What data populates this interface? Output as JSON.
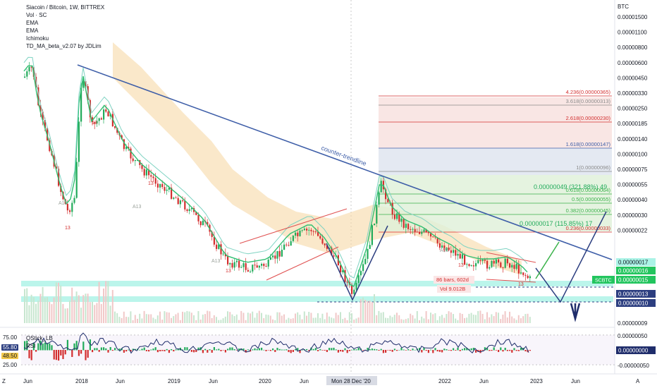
{
  "header": {
    "title": "Siacoin / Bitcoin, 1W, BITTREX",
    "indicators": [
      "Vol · SC",
      "EMA",
      "EMA",
      "Ichimoku",
      "TD_MA_beta_v2.07 by JDLim"
    ]
  },
  "sub_panel": {
    "indicators": [
      "QStick_LB",
      "RSI"
    ],
    "left_labels": [
      "75.00",
      "55.80",
      "48.50",
      "25.00"
    ],
    "right_labels": [
      "0.00000050",
      "0.00000000",
      "-0.00000050"
    ]
  },
  "colors": {
    "bull": "#22ab5b",
    "bear": "#d32f2f",
    "trendline": "#3e5ea8",
    "kumo": "#f7d9a6",
    "fib_green": "#3ab24a",
    "axis_text": "#131722"
  },
  "chart_data": {
    "type": "candlestick",
    "symbol": "SCBTC",
    "currency_label": "BTC",
    "y_axis_ticks": [
      "0.00001500",
      "0.00001100",
      "0.00000800",
      "0.00000600",
      "0.00000450",
      "0.00000330",
      "0.00000250",
      "0.00000185",
      "0.00000140",
      "0.00000100",
      "0.00000075",
      "0.00000055",
      "0.00000040",
      "0.00000030",
      "0.00000022",
      "0.00000009"
    ],
    "x_axis_ticks": [
      "Jun",
      "2018",
      "Jun",
      "2019",
      "Jun",
      "2020",
      "Jun",
      "Mon 28 Dec '20",
      "2022",
      "Jun",
      "2023",
      "Jun"
    ],
    "price_tags": [
      {
        "text": "0.00000017",
        "color": "#aaf3e6",
        "text_color": "#131722"
      },
      {
        "text": "0.00000016",
        "color": "#22c55e",
        "text_color": "#ffffff"
      },
      {
        "text": "0.00000015",
        "color": "#22c55e",
        "text_color": "#ffffff"
      },
      {
        "text": "0.00000013",
        "color": "#2c3e80",
        "text_color": "#ffffff"
      },
      {
        "text": "0.00000010",
        "color": "#2c3e80",
        "text_color": "#ffffff"
      }
    ],
    "symbol_tag": "SCBTC",
    "fib_levels": [
      {
        "label": "4.236(0.00000365)",
        "color": "#d32f2f"
      },
      {
        "label": "3.618(0.00000313)",
        "color": "#8a8a8a"
      },
      {
        "label": "2.618(0.00000230)",
        "color": "#d32f2f"
      },
      {
        "label": "1.618(0.00000147)",
        "color": "#3e5ea8"
      },
      {
        "label": "1(0.00000096)",
        "color": "#8a8a8a"
      },
      {
        "label": "0.618(0.00000064)",
        "color": "#3ab24a"
      },
      {
        "label": "0.5(0.00000055)",
        "color": "#3ab24a"
      },
      {
        "label": "0.382(0.00000045)",
        "color": "#3ab24a"
      },
      {
        "label": "0.236(0.00000033)",
        "color": "#d32f2f"
      }
    ],
    "annotations": {
      "trendline": "counter-trendline",
      "measure_up_1": "0.00000049 (321.88%) 49",
      "measure_up_2": "0.00000017 (115.85%) 17",
      "bars_label": "86 bars, 602d",
      "vol_label": "Vol 9.012B",
      "td_labels": [
        "13",
        "13",
        "13",
        "13",
        "13",
        "13",
        "A13",
        "A13",
        "A13",
        "A13"
      ]
    },
    "corner_labels": {
      "left": "Z",
      "right": "A"
    }
  }
}
